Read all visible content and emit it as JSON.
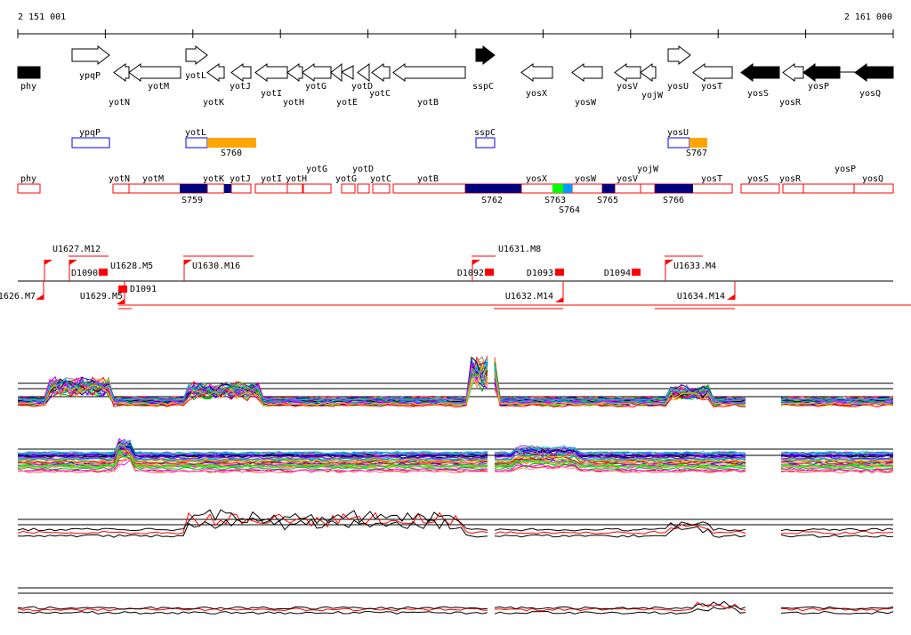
{
  "coords": {
    "start": "2 151 001",
    "end": "2 161 000"
  },
  "genes": [
    "phy",
    "ypqP",
    "yotN",
    "yotM",
    "yotL",
    "yotK",
    "yotJ",
    "yotI",
    "yotH",
    "yotG",
    "yotE",
    "yotD",
    "yotC",
    "yotB",
    "sspC",
    "yosX",
    "yosW",
    "yosV",
    "yojW",
    "yosU",
    "yosT",
    "yosS",
    "yosR",
    "yosP",
    "yosQ"
  ],
  "row2": {
    "genes": [
      "ypqP",
      "yotL",
      "sspC",
      "yosU"
    ],
    "segments": [
      "S760",
      "S767"
    ]
  },
  "row3": {
    "labels": [
      "phy",
      "yotN",
      "yotM",
      "yotK",
      "yotJ",
      "yotI",
      "yotH",
      "yotG",
      "yotG",
      "yotD",
      "yotC",
      "yotB",
      "yosX",
      "yosW",
      "yosV",
      "yojW",
      "yosT",
      "yosS",
      "yosR",
      "yosP",
      "yosQ"
    ],
    "segments": [
      "S759",
      "S762",
      "S763",
      "S764",
      "S765",
      "S766"
    ]
  },
  "features": [
    "U1627.M12",
    "U1628.M5",
    "D1090",
    "U1630.M16",
    "1626.M7",
    "U1629.M5",
    "D1091",
    "D1092",
    "U1631.M8",
    "D1093",
    "D1094",
    "U1633.M4",
    "U1632.M14",
    "U1634.M14"
  ],
  "colors": {
    "accent": "#ff0000",
    "segment": "#000080",
    "orange": "#ffa500",
    "green": "#00ff00",
    "lightblue": "#0099ff"
  }
}
